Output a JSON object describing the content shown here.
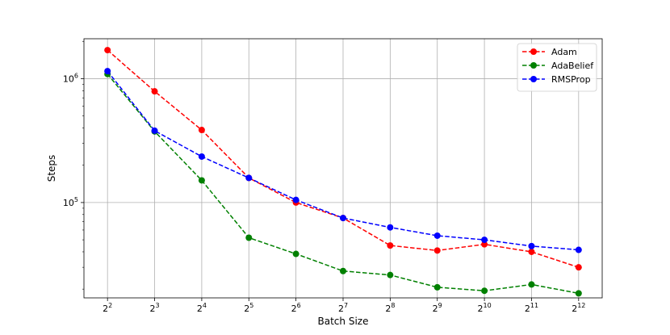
{
  "chart_data": {
    "type": "line",
    "title": "",
    "xlabel": "Batch Size",
    "ylabel": "Steps",
    "x_scale": "log2",
    "y_scale": "log10",
    "x": [
      4,
      8,
      16,
      32,
      64,
      128,
      256,
      512,
      1024,
      2048,
      4096
    ],
    "x_tick_labels": [
      {
        "base": "2",
        "exp": "2"
      },
      {
        "base": "2",
        "exp": "3"
      },
      {
        "base": "2",
        "exp": "4"
      },
      {
        "base": "2",
        "exp": "5"
      },
      {
        "base": "2",
        "exp": "6"
      },
      {
        "base": "2",
        "exp": "7"
      },
      {
        "base": "2",
        "exp": "8"
      },
      {
        "base": "2",
        "exp": "9"
      },
      {
        "base": "2",
        "exp": "10"
      },
      {
        "base": "2",
        "exp": "11"
      },
      {
        "base": "2",
        "exp": "12"
      }
    ],
    "y_tick_labels": [
      {
        "value": 1000000,
        "base": "10",
        "exp": "6"
      },
      {
        "value": 100000,
        "base": "10",
        "exp": "5"
      }
    ],
    "ylim": [
      17000,
      2100000
    ],
    "grid": true,
    "legend_position": "top-right",
    "series": [
      {
        "name": "Adam",
        "color": "#ff0000",
        "values": [
          1700000,
          790000,
          385000,
          158000,
          100000,
          75000,
          45000,
          41000,
          46000,
          40000,
          30000
        ]
      },
      {
        "name": "AdaBelief",
        "color": "#008000",
        "values": [
          1090000,
          375000,
          151000,
          52000,
          38500,
          28000,
          26000,
          20700,
          19400,
          21800,
          18500
        ]
      },
      {
        "name": "RMSProp",
        "color": "#0000ff",
        "values": [
          1150000,
          380000,
          235000,
          158000,
          105000,
          75000,
          63000,
          54000,
          50000,
          44500,
          41500
        ]
      }
    ]
  }
}
